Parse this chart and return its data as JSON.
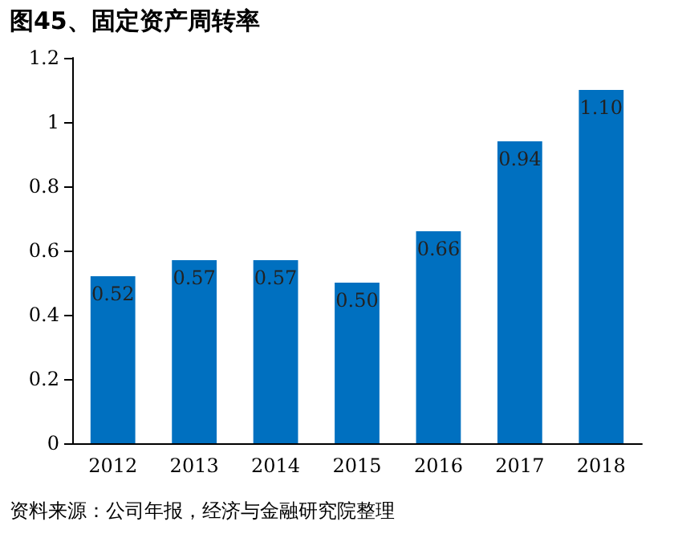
{
  "chart_data": {
    "type": "bar",
    "title": "图45、固定资产周转率",
    "categories": [
      "2012",
      "2013",
      "2014",
      "2015",
      "2016",
      "2017",
      "2018"
    ],
    "values": [
      0.52,
      0.57,
      0.57,
      0.5,
      0.66,
      0.94,
      1.1
    ],
    "color": "#0070c0",
    "value_labels": [
      "0.52",
      "0.57",
      "0.57",
      "0.50",
      "0.66",
      "0.94",
      "1.10"
    ],
    "ylim": [
      0,
      1.2
    ],
    "yticks": [
      0,
      0.2,
      0.4,
      0.6,
      0.8,
      1,
      1.2
    ],
    "grid": false,
    "annotations": [
      "资料来源：公司年报，经济与金融研究院整理"
    ]
  }
}
